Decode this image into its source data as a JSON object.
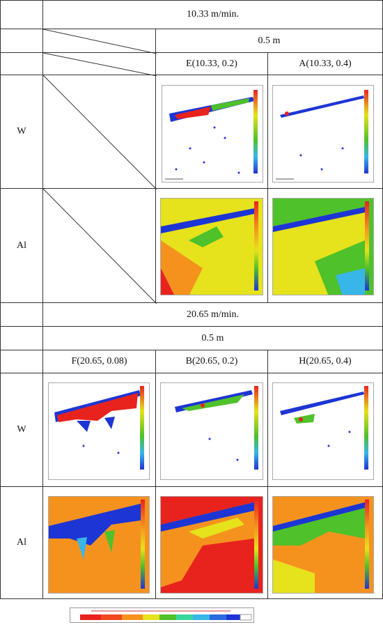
{
  "sections": [
    {
      "speed": "10.33 m/min.",
      "depth": "0.5 m",
      "conditions": [
        "E(10.33, 0.2)",
        "A(10.33, 0.4)"
      ]
    },
    {
      "speed": "20.65 m/min.",
      "depth": "0.5 m",
      "conditions": [
        "F(20.65, 0.08)",
        "B(20.65, 0.2)",
        "H(20.65, 0.4)"
      ]
    }
  ],
  "rows": [
    "W",
    "Al",
    "W",
    "Al"
  ],
  "colors": {
    "red": "#e8231e",
    "orange": "#f5921e",
    "yellow": "#e6e21c",
    "green": "#4fc12a",
    "blue": "#1d35d4",
    "lightblue": "#38b6e8"
  }
}
